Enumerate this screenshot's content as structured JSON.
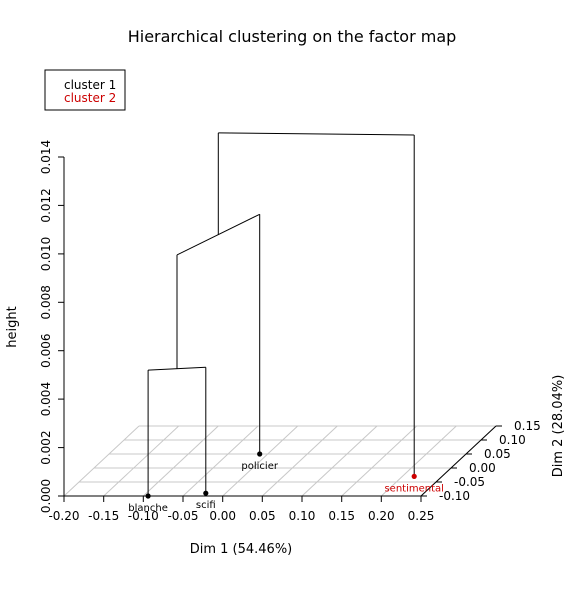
{
  "chart_data": {
    "type": "3d-dendrogram",
    "title": "Hierarchical clustering on the factor map",
    "xlabel": "Dim 1 (54.46%)",
    "ylabel": "Dim 2 (28.04%)",
    "zlabel": "height",
    "xlim": [
      -0.2,
      0.25
    ],
    "ylim": [
      -0.1,
      0.15
    ],
    "zlim": [
      0,
      0.014
    ],
    "x_ticks": [
      "-0.20",
      "-0.15",
      "-0.10",
      "-0.05",
      "0.00",
      "0.05",
      "0.10",
      "0.15",
      "0.20",
      "0.25"
    ],
    "y_ticks": [
      "-0.10",
      "-0.05",
      "0.00",
      "0.05",
      "0.10",
      "0.15"
    ],
    "z_ticks": [
      "0.000",
      "0.002",
      "0.004",
      "0.006",
      "0.008",
      "0.010",
      "0.012",
      "0.014"
    ],
    "legend_position": "top-left",
    "legend": [
      {
        "name": "cluster 1",
        "color": "#000000"
      },
      {
        "name": "cluster 2",
        "color": "#cc0000"
      }
    ],
    "points": [
      {
        "label": "blanche",
        "dim1": -0.094,
        "dim2": -0.1,
        "cluster": 1
      },
      {
        "label": "scifi",
        "dim1": -0.025,
        "dim2": -0.09,
        "cluster": 1
      },
      {
        "label": "policier",
        "dim1": -0.01,
        "dim2": 0.05,
        "cluster": 1
      },
      {
        "label": "sentimental",
        "dim1": 0.215,
        "dim2": -0.03,
        "cluster": 2
      }
    ],
    "merges": [
      {
        "a": "blanche",
        "b": "scifi",
        "height": 0.0052
      },
      {
        "a": "blanche+scifi",
        "b": "policier",
        "height": 0.0099
      },
      {
        "a": "blanche+scifi+policier",
        "b": "sentimental",
        "height": 0.0141
      }
    ]
  }
}
